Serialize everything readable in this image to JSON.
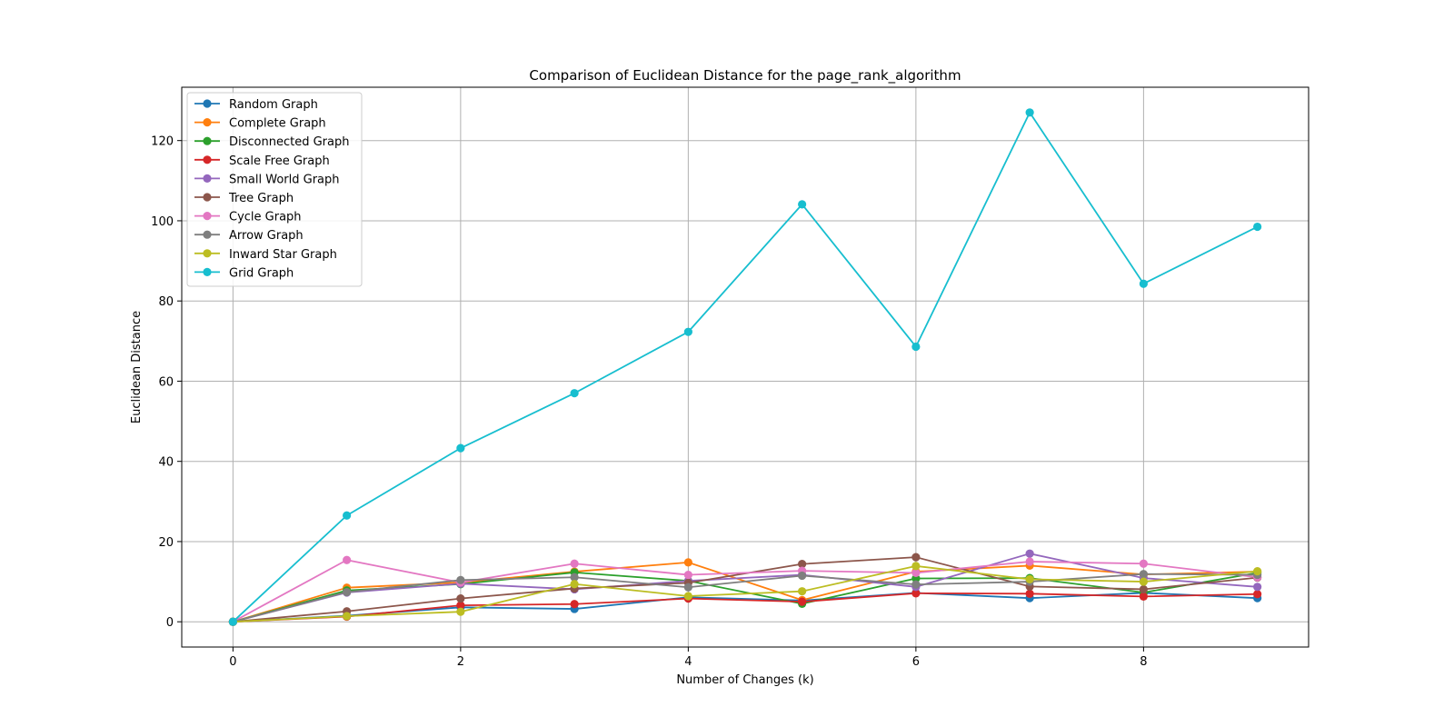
{
  "chart_data": {
    "type": "line",
    "title": "Comparison of Euclidean Distance for the page_rank_algorithm",
    "xlabel": "Number of Changes (k)",
    "ylabel": "Euclidean Distance",
    "xlim": [
      -0.45,
      9.45
    ],
    "ylim": [
      -6.3,
      133.3
    ],
    "xticks": [
      0,
      2,
      4,
      6,
      8
    ],
    "yticks": [
      0,
      20,
      40,
      60,
      80,
      100,
      120
    ],
    "grid": true,
    "legend_position": "top-left",
    "x": [
      0,
      1,
      2,
      3,
      4,
      5,
      6,
      7,
      8,
      9
    ],
    "series": [
      {
        "name": "Random Graph",
        "color": "#1f77b4",
        "values": [
          0,
          1.5,
          3.6,
          3.2,
          6.1,
          5.3,
          7.2,
          5.9,
          7.2,
          5.9
        ]
      },
      {
        "name": "Complete Graph",
        "color": "#ff7f0e",
        "values": [
          0,
          8.5,
          9.8,
          12.5,
          14.8,
          5.4,
          12.5,
          14.0,
          11.8,
          12.5
        ]
      },
      {
        "name": "Disconnected Graph",
        "color": "#2ca02c",
        "values": [
          0,
          7.8,
          9.4,
          12.3,
          10.2,
          4.5,
          10.8,
          10.9,
          7.3,
          12.2
        ]
      },
      {
        "name": "Scale Free Graph",
        "color": "#d62728",
        "values": [
          0,
          1.3,
          4.1,
          4.4,
          5.8,
          5.0,
          7.1,
          7.0,
          6.3,
          6.9
        ]
      },
      {
        "name": "Small World Graph",
        "color": "#9467bd",
        "values": [
          0,
          7.3,
          9.5,
          8.1,
          10.2,
          11.7,
          8.7,
          17.0,
          10.9,
          8.7
        ]
      },
      {
        "name": "Tree Graph",
        "color": "#8c564b",
        "values": [
          0,
          2.6,
          5.8,
          8.3,
          9.7,
          14.4,
          16.1,
          8.8,
          8.1,
          11.0
        ]
      },
      {
        "name": "Cycle Graph",
        "color": "#e377c2",
        "values": [
          0,
          15.4,
          9.8,
          14.5,
          11.7,
          12.7,
          12.2,
          15.0,
          14.5,
          11.1
        ]
      },
      {
        "name": "Arrow Graph",
        "color": "#7f7f7f",
        "values": [
          0,
          7.4,
          10.4,
          11.1,
          8.6,
          11.5,
          9.3,
          10.0,
          11.9,
          11.7
        ]
      },
      {
        "name": "Inward Star Graph",
        "color": "#bcbd22",
        "values": [
          0,
          1.4,
          2.5,
          9.4,
          6.4,
          7.6,
          13.9,
          10.6,
          10.0,
          12.6
        ]
      },
      {
        "name": "Grid Graph",
        "color": "#17becf",
        "values": [
          0,
          26.5,
          43.3,
          57.0,
          72.3,
          104.1,
          68.6,
          127.0,
          84.3,
          98.5
        ]
      }
    ]
  }
}
